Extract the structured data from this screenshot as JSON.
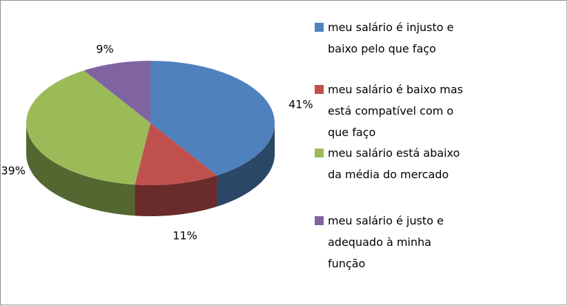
{
  "chart_data": {
    "type": "pie3d",
    "categories": [
      "meu salário é injusto e baixo pelo que faço",
      "meu salário é baixo mas está compatível com o que faço",
      "meu salário está abaixo da média do mercado",
      "meu salário é justo e adequado à minha função"
    ],
    "values": [
      41,
      11,
      39,
      9
    ],
    "value_labels": [
      "41%",
      "11%",
      "39%",
      "9%"
    ],
    "colors": [
      "#4f81bd",
      "#c0504d",
      "#9bbb59",
      "#8064a2"
    ],
    "legend": "right"
  }
}
